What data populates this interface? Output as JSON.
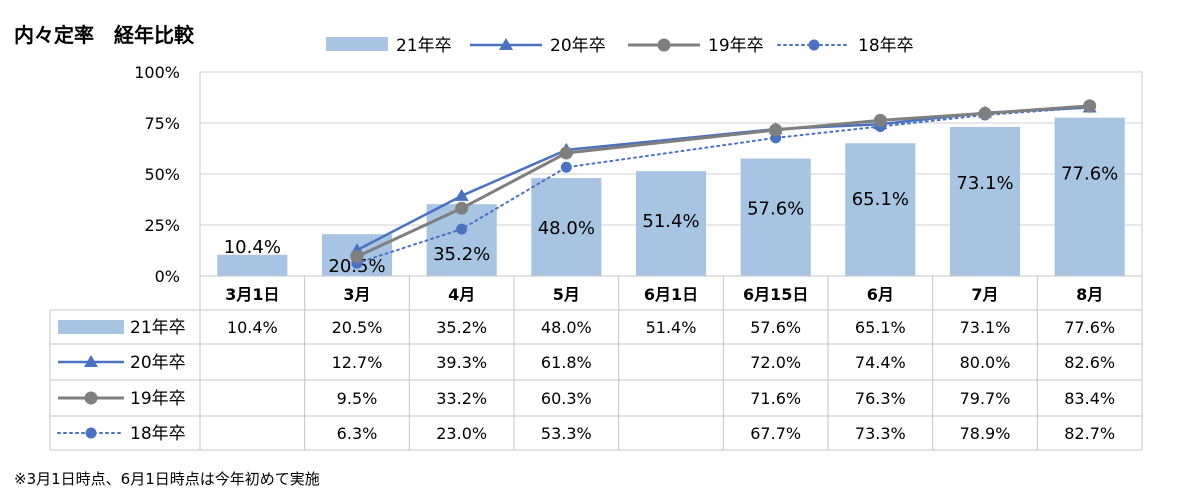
{
  "title": "内々定率　経年比較",
  "footnote": "※3月1日時点、6月1日時点は今年初めて実施",
  "colors": {
    "bar": "#a7c4e2",
    "s20": "#4a72c0",
    "s19": "#7f7f7f",
    "s18": "#4a72c0",
    "grid": "#d0d0d0",
    "axis": "#c8c8c8"
  },
  "chart_data": {
    "type": "bar",
    "ylim": [
      0,
      100
    ],
    "yticks": [
      "0%",
      "25%",
      "50%",
      "75%",
      "100%"
    ],
    "categories": [
      "3月1日",
      "3月",
      "4月",
      "5月",
      "6月1日",
      "6月15日",
      "6月",
      "7月",
      "8月"
    ],
    "series": [
      {
        "name": "21年卒",
        "type": "bar",
        "values": [
          10.4,
          20.5,
          35.2,
          48.0,
          51.4,
          57.6,
          65.1,
          73.1,
          77.6
        ],
        "labels": [
          "10.4%",
          "20.5%",
          "35.2%",
          "48.0%",
          "51.4%",
          "57.6%",
          "65.1%",
          "73.1%",
          "77.6%"
        ]
      },
      {
        "name": "20年卒",
        "type": "line",
        "marker": "triangle",
        "style": "solid",
        "values": [
          null,
          12.7,
          39.3,
          61.8,
          null,
          72.0,
          74.4,
          80.0,
          82.6
        ],
        "labels": [
          "",
          "12.7%",
          "39.3%",
          "61.8%",
          "",
          "72.0%",
          "74.4%",
          "80.0%",
          "82.6%"
        ]
      },
      {
        "name": "19年卒",
        "type": "line",
        "marker": "circle",
        "style": "solid",
        "values": [
          null,
          9.5,
          33.2,
          60.3,
          null,
          71.6,
          76.3,
          79.7,
          83.4
        ],
        "labels": [
          "",
          "9.5%",
          "33.2%",
          "60.3%",
          "",
          "71.6%",
          "76.3%",
          "79.7%",
          "83.4%"
        ]
      },
      {
        "name": "18年卒",
        "type": "line",
        "marker": "circle",
        "style": "dotted",
        "values": [
          null,
          6.3,
          23.0,
          53.3,
          null,
          67.7,
          73.3,
          78.9,
          82.7
        ],
        "labels": [
          "",
          "6.3%",
          "23.0%",
          "53.3%",
          "",
          "67.7%",
          "73.3%",
          "78.9%",
          "82.7%"
        ]
      }
    ]
  }
}
